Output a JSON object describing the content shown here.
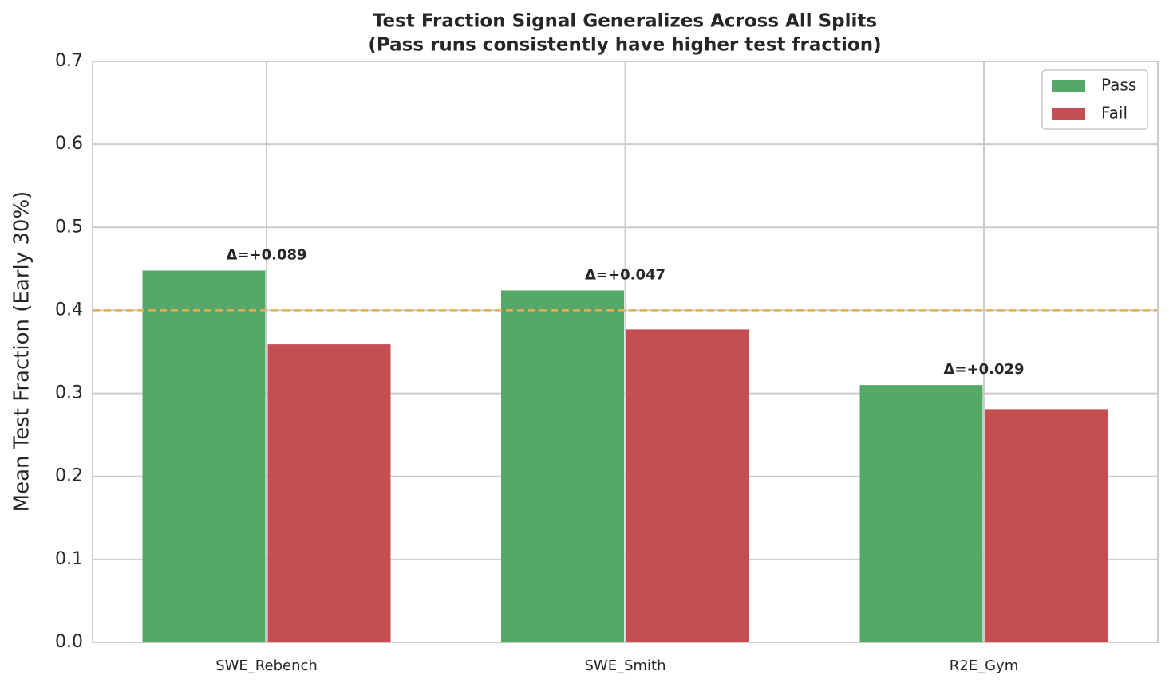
{
  "chart_data": {
    "type": "bar",
    "title": "Test Fraction Signal Generalizes Across All Splits",
    "subtitle": "(Pass runs consistently have higher test fraction)",
    "y_label": "Mean Test Fraction (Early 30%)",
    "categories": [
      "SWE_Rebench",
      "SWE_Smith",
      "R2E_Gym"
    ],
    "series": [
      {
        "name": "Pass",
        "color": "#55a868",
        "values": [
          0.448,
          0.424,
          0.31
        ]
      },
      {
        "name": "Fail",
        "color": "#c44e52",
        "values": [
          0.359,
          0.377,
          0.281
        ]
      }
    ],
    "annotations": [
      "Δ=+0.089",
      "Δ=+0.047",
      "Δ=+0.029"
    ],
    "reference_line": {
      "value": 0.4,
      "color": "#e8b04a"
    },
    "ylim": [
      0,
      0.7
    ],
    "yticks": [
      {
        "value": 0,
        "label": "0.0"
      },
      0.1,
      0.2,
      0.3,
      0.4,
      0.5,
      0.6,
      0.7
    ],
    "grid": true,
    "legend": "upper-right"
  }
}
